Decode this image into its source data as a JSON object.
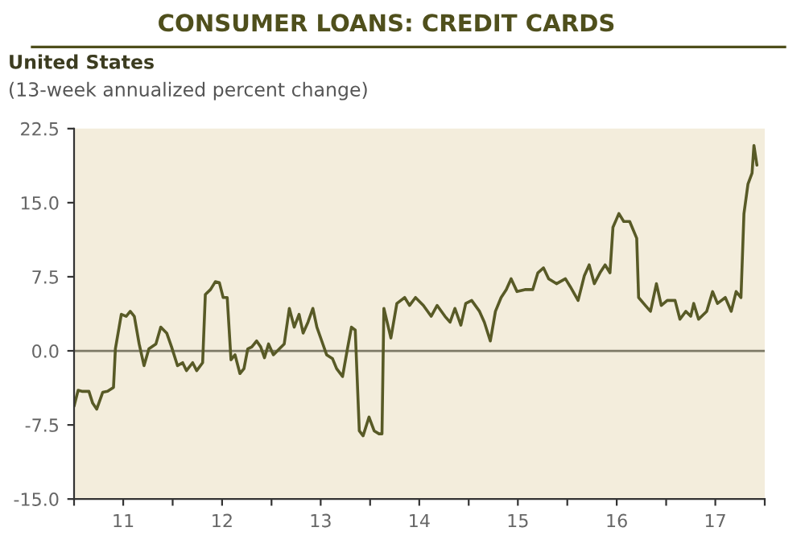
{
  "chart_data": {
    "type": "line",
    "title": "CONSUMER LOANS: CREDIT CARDS",
    "subtitle": "United States",
    "annotations": [
      "(13-week annualized percent change)"
    ],
    "x": [
      "2011-01-01",
      "2011-01-16",
      "2011-01-30",
      "2011-02-25",
      "2011-03-11",
      "2011-03-26",
      "2011-04-17",
      "2011-05-05",
      "2011-05-27",
      "2011-06-03",
      "2011-06-25",
      "2011-07-13",
      "2011-07-28",
      "2011-08-12",
      "2011-08-30",
      "2011-09-17",
      "2011-10-05",
      "2011-10-31",
      "2011-11-18",
      "2011-12-10",
      "2011-12-28",
      "2012-01-19",
      "2012-02-07",
      "2012-02-21",
      "2012-03-15",
      "2012-03-30",
      "2012-04-21",
      "2012-05-01",
      "2012-05-20",
      "2012-06-07",
      "2012-06-22",
      "2012-07-06",
      "2012-07-21",
      "2012-08-04",
      "2012-08-19",
      "2012-09-06",
      "2012-09-21",
      "2012-10-05",
      "2012-10-20",
      "2012-11-07",
      "2012-11-22",
      "2012-12-06",
      "2012-12-21",
      "2013-01-08",
      "2013-01-30",
      "2013-02-17",
      "2013-03-08",
      "2013-03-26",
      "2013-04-13",
      "2013-04-28",
      "2013-05-16",
      "2013-06-03",
      "2013-06-18",
      "2013-07-06",
      "2013-07-24",
      "2013-08-15",
      "2013-08-30",
      "2013-09-21",
      "2013-10-09",
      "2013-10-24",
      "2013-11-07",
      "2013-11-22",
      "2013-12-06",
      "2013-12-28",
      "2014-01-16",
      "2014-02-03",
      "2014-02-14",
      "2014-02-21",
      "2014-03-19",
      "2014-04-10",
      "2014-05-09",
      "2014-05-27",
      "2014-06-18",
      "2014-07-17",
      "2014-08-15",
      "2014-09-06",
      "2014-10-05",
      "2014-10-24",
      "2014-11-11",
      "2014-12-03",
      "2014-12-21",
      "2015-01-12",
      "2015-02-10",
      "2015-02-28",
      "2015-03-22",
      "2015-04-10",
      "2015-05-01",
      "2015-05-20",
      "2015-06-07",
      "2015-06-29",
      "2015-07-28",
      "2015-08-26",
      "2015-09-14",
      "2015-10-05",
      "2015-10-24",
      "2015-11-22",
      "2015-12-25",
      "2016-01-12",
      "2016-02-10",
      "2016-03-04",
      "2016-03-22",
      "2016-04-10",
      "2016-05-01",
      "2016-05-20",
      "2016-06-07",
      "2016-06-18",
      "2016-07-10",
      "2016-07-28",
      "2016-08-19",
      "2016-09-14",
      "2016-09-21",
      "2016-10-16",
      "2016-11-04",
      "2016-11-26",
      "2016-12-14",
      "2017-01-05",
      "2017-02-03",
      "2017-02-21",
      "2017-03-15",
      "2017-04-02",
      "2017-04-13",
      "2017-05-01",
      "2017-05-31",
      "2017-06-22",
      "2017-07-10",
      "2017-08-08",
      "2017-08-30",
      "2017-09-17",
      "2017-10-05",
      "2017-10-16",
      "2017-10-31",
      "2017-11-15",
      "2017-11-22",
      "2017-12-03"
    ],
    "series": [
      {
        "color": "#585a26",
        "values": [
          -5.6,
          -4.0,
          -4.1,
          -4.1,
          -5.3,
          -5.9,
          -4.2,
          -4.1,
          -3.7,
          0.2,
          3.7,
          3.5,
          4.0,
          3.5,
          0.7,
          -1.5,
          0.2,
          0.7,
          2.4,
          1.8,
          0.4,
          -1.5,
          -1.2,
          -2.0,
          -1.2,
          -2.0,
          -1.2,
          5.7,
          6.2,
          7.0,
          6.9,
          5.4,
          5.4,
          -0.9,
          -0.4,
          -2.3,
          -1.8,
          0.2,
          0.4,
          1.0,
          0.4,
          -0.7,
          0.7,
          -0.4,
          0.2,
          0.7,
          4.3,
          2.4,
          3.7,
          1.8,
          2.9,
          4.3,
          2.4,
          1.0,
          -0.4,
          -0.8,
          -1.8,
          -2.6,
          0.2,
          2.4,
          2.1,
          -8.1,
          -8.6,
          -6.7,
          -8.1,
          -8.4,
          -8.4,
          4.3,
          1.3,
          4.8,
          5.4,
          4.6,
          5.4,
          4.6,
          3.5,
          4.6,
          3.5,
          2.9,
          4.3,
          2.6,
          4.8,
          5.1,
          4.0,
          2.9,
          1.0,
          4.0,
          5.4,
          6.2,
          7.3,
          6.0,
          6.2,
          6.2,
          7.9,
          8.4,
          7.3,
          6.8,
          7.3,
          6.5,
          5.1,
          7.6,
          8.7,
          6.8,
          7.9,
          8.7,
          7.9,
          12.5,
          13.9,
          13.1,
          13.1,
          11.4,
          5.4,
          4.6,
          4.0,
          6.8,
          4.6,
          5.1,
          5.1,
          3.2,
          4.0,
          3.5,
          4.8,
          3.2,
          4.0,
          6.0,
          4.8,
          5.4,
          4.0,
          6.0,
          5.4,
          13.9,
          16.9,
          18.0,
          20.8,
          18.8
        ]
      }
    ],
    "xlim": [
      "2011-01-01",
      "2018-01-01"
    ],
    "xticks": [
      {
        "value": "2011-01-01",
        "label": null
      },
      {
        "value": "2011-07-02",
        "label": "11"
      },
      {
        "value": "2012-01-01",
        "label": null
      },
      {
        "value": "2012-07-02",
        "label": "12"
      },
      {
        "value": "2013-01-01",
        "label": null
      },
      {
        "value": "2013-07-02",
        "label": "13"
      },
      {
        "value": "2014-01-01",
        "label": null
      },
      {
        "value": "2014-07-02",
        "label": "14"
      },
      {
        "value": "2015-01-01",
        "label": null
      },
      {
        "value": "2015-07-02",
        "label": "15"
      },
      {
        "value": "2016-01-01",
        "label": null
      },
      {
        "value": "2016-07-02",
        "label": "16"
      },
      {
        "value": "2017-01-01",
        "label": null
      },
      {
        "value": "2017-07-02",
        "label": "17"
      },
      {
        "value": "2018-01-01",
        "label": null
      }
    ],
    "ylim": [
      -15,
      22.5
    ],
    "yticks": [
      {
        "value": -15,
        "label": "-15.0"
      },
      {
        "value": -7.5,
        "label": "-7.5"
      },
      {
        "value": 0,
        "label": "0.0"
      },
      {
        "value": 7.5,
        "label": "7.5"
      },
      {
        "value": 15,
        "label": "15.0"
      },
      {
        "value": 22.5,
        "label": "22.5"
      }
    ],
    "ref_lines": [
      {
        "axis": "y",
        "value": 0,
        "color": "#7d7a66"
      }
    ],
    "grid": false,
    "legend": false
  }
}
